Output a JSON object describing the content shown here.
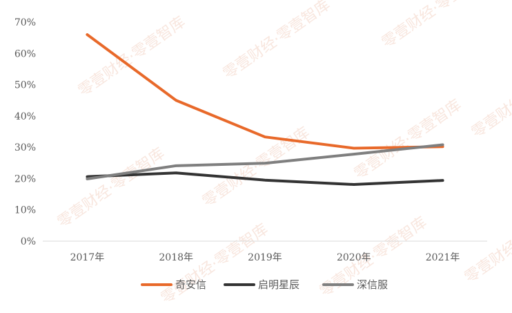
{
  "watermark": "零壹财经·零壹智库",
  "chart_data": {
    "type": "line",
    "x": [
      "2017年",
      "2018年",
      "2019年",
      "2020年",
      "2021年"
    ],
    "ylim": [
      0,
      70
    ],
    "yticks": [
      "0%",
      "10%",
      "20%",
      "30%",
      "40%",
      "50%",
      "60%",
      "70%"
    ],
    "grid": false,
    "legend_position": "bottom",
    "series": [
      {
        "name": "奇安信",
        "color": "#e8692a",
        "values": [
          66,
          45,
          33.3,
          29.7,
          30.2
        ]
      },
      {
        "name": "启明星辰",
        "color": "#333333",
        "values": [
          20.6,
          21.8,
          19.5,
          18.1,
          19.4
        ]
      },
      {
        "name": "深信服",
        "color": "#7f7f7f",
        "values": [
          19.9,
          24.1,
          24.9,
          27.8,
          30.8
        ]
      }
    ]
  }
}
